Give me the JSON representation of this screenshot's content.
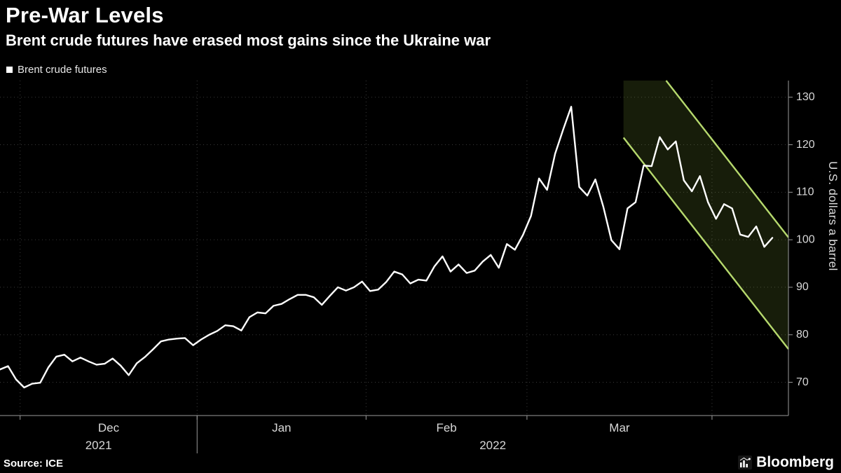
{
  "header": {
    "title": "Pre-War Levels",
    "subtitle": "Brent crude futures have erased most gains since the Ukraine war"
  },
  "legend": {
    "label": "Brent crude futures",
    "marker_color": "#ffffff"
  },
  "footer": {
    "source": "Source: ICE",
    "brand": "Bloomberg"
  },
  "colors": {
    "background": "#000000",
    "line": "#ffffff",
    "grid": "#3a3a3a",
    "axis": "#9a9a9a",
    "tick_text": "#d8d8d8",
    "channel_fill": "rgba(160,205,70,0.14)",
    "channel_line": "#b6d96d"
  },
  "chart_data": {
    "type": "line",
    "title": "Pre-War Levels",
    "subtitle": "Brent crude futures have erased most gains since the Ukraine war",
    "ylabel": "U.S. dollars a barrel",
    "xlabel": "",
    "grid": true,
    "legend_position": "top-left",
    "axis_side": "right",
    "y_ticks": [
      70,
      80,
      90,
      100,
      110,
      120,
      130
    ],
    "y_domain": [
      63,
      133.5
    ],
    "x_domain_index": [
      0,
      98
    ],
    "x_month_ticks": [
      {
        "label": "Dec",
        "start_index": 2.5,
        "center_index": 13.5
      },
      {
        "label": "Jan",
        "start_index": 24.5,
        "center_index": 35
      },
      {
        "label": "Feb",
        "start_index": 45.5,
        "center_index": 55.5
      },
      {
        "label": "Mar",
        "start_index": 65.5,
        "center_index": 77
      },
      {
        "label": "",
        "start_index": 88.5,
        "center_index": null
      }
    ],
    "year_labels": [
      {
        "label": "2021",
        "center_index": 12.25
      },
      {
        "label": "2022",
        "center_index": 61.25
      }
    ],
    "year_separator_index": 24.5,
    "channel": {
      "start_index": 77.5,
      "end_index": 98,
      "lower_start": 121.5,
      "lower_end": 77.0,
      "upper_start": 145.0,
      "upper_end": 100.5,
      "clip_top": 133.5
    },
    "series": [
      {
        "name": "Brent crude futures",
        "dates": [
          "2021-11-26",
          "2021-11-29",
          "2021-11-30",
          "2021-12-01",
          "2021-12-02",
          "2021-12-03",
          "2021-12-06",
          "2021-12-07",
          "2021-12-08",
          "2021-12-09",
          "2021-12-10",
          "2021-12-13",
          "2021-12-14",
          "2021-12-15",
          "2021-12-16",
          "2021-12-17",
          "2021-12-20",
          "2021-12-21",
          "2021-12-22",
          "2021-12-23",
          "2021-12-27",
          "2021-12-28",
          "2021-12-29",
          "2021-12-30",
          "2021-12-31",
          "2022-01-03",
          "2022-01-04",
          "2022-01-05",
          "2022-01-06",
          "2022-01-07",
          "2022-01-10",
          "2022-01-11",
          "2022-01-12",
          "2022-01-13",
          "2022-01-14",
          "2022-01-17",
          "2022-01-18",
          "2022-01-19",
          "2022-01-20",
          "2022-01-21",
          "2022-01-24",
          "2022-01-25",
          "2022-01-26",
          "2022-01-27",
          "2022-01-28",
          "2022-01-31",
          "2022-02-01",
          "2022-02-02",
          "2022-02-03",
          "2022-02-04",
          "2022-02-07",
          "2022-02-08",
          "2022-02-09",
          "2022-02-10",
          "2022-02-11",
          "2022-02-14",
          "2022-02-15",
          "2022-02-16",
          "2022-02-17",
          "2022-02-18",
          "2022-02-21",
          "2022-02-22",
          "2022-02-23",
          "2022-02-24",
          "2022-02-25",
          "2022-02-28",
          "2022-03-01",
          "2022-03-02",
          "2022-03-03",
          "2022-03-04",
          "2022-03-07",
          "2022-03-08",
          "2022-03-09",
          "2022-03-10",
          "2022-03-11",
          "2022-03-14",
          "2022-03-15",
          "2022-03-16",
          "2022-03-17",
          "2022-03-18",
          "2022-03-21",
          "2022-03-22",
          "2022-03-23",
          "2022-03-24",
          "2022-03-25",
          "2022-03-28",
          "2022-03-29",
          "2022-03-30",
          "2022-03-31",
          "2022-04-01",
          "2022-04-04",
          "2022-04-05",
          "2022-04-06",
          "2022-04-07",
          "2022-04-08",
          "2022-04-11",
          "2022-04-12"
        ],
        "values": [
          72.7,
          73.4,
          70.6,
          68.9,
          69.7,
          69.9,
          73.1,
          75.4,
          75.8,
          74.4,
          75.2,
          74.4,
          73.7,
          73.9,
          75.0,
          73.5,
          71.5,
          74.0,
          75.3,
          76.9,
          78.6,
          79.0,
          79.2,
          79.3,
          77.8,
          79.0,
          80.0,
          80.8,
          82.0,
          81.8,
          80.9,
          83.7,
          84.7,
          84.5,
          86.1,
          86.5,
          87.5,
          88.4,
          88.4,
          87.9,
          86.3,
          88.2,
          90.0,
          89.3,
          90.0,
          91.2,
          89.2,
          89.5,
          91.1,
          93.3,
          92.7,
          90.8,
          91.6,
          91.4,
          94.4,
          96.5,
          93.3,
          94.8,
          93.0,
          93.5,
          95.4,
          96.8,
          94.1,
          99.1,
          97.9,
          101.0,
          105.0,
          112.9,
          110.5,
          118.1,
          123.2,
          128.0,
          111.1,
          109.3,
          112.7,
          106.9,
          99.9,
          98.0,
          106.6,
          107.9,
          115.6,
          115.5,
          121.6,
          119.0,
          120.7,
          112.5,
          110.2,
          113.4,
          107.9,
          104.4,
          107.5,
          106.6,
          101.1,
          100.6,
          102.8,
          98.5,
          100.4
        ]
      }
    ]
  }
}
